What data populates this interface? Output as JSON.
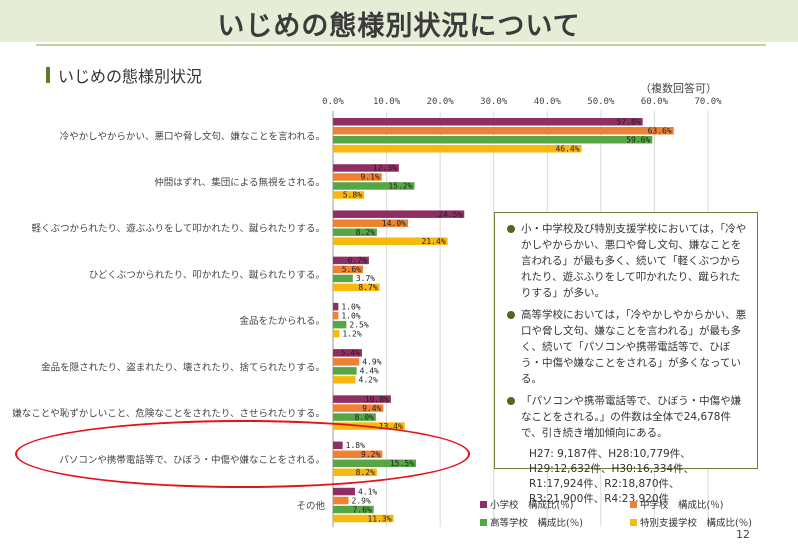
{
  "slide": {
    "title": "いじめの態様別状況について",
    "section_title": "いじめの態様別状況",
    "multi_answer_note": "（複数回答可）",
    "page_number": "12"
  },
  "colors": {
    "elementary": "#8e2e62",
    "junior_high": "#ef8232",
    "high_school": "#57a646",
    "special_needs": "#f8b80e",
    "header_bg": "#e6edd6",
    "highlight": "#e3131a"
  },
  "chart_data": {
    "type": "bar",
    "orientation": "horizontal",
    "title": "",
    "xlim": [
      0,
      70
    ],
    "x_ticks": [
      "0.0%",
      "10.0%",
      "20.0%",
      "30.0%",
      "40.0%",
      "50.0%",
      "60.0%",
      "70.0%"
    ],
    "grid": true,
    "legend_position": "bottom-right",
    "categories": [
      "冷やかしやからかい、悪口や脅し文句、嫌なことを言われる。",
      "仲間はずれ、集団による無視をされる。",
      "軽くぶつかられたり、遊ぶふりをして叩かれたり、蹴られたりする。",
      "ひどくぶつかられたり、叩かれたり、蹴られたりする。",
      "金品をたかられる。",
      "金品を隠されたり、盗まれたり、壊されたり、捨てられたりする。",
      "嫌なことや恥ずかしいこと、危険なことをされたり、させられたりする。",
      "パソコンや携帯電話等で、ひぼう・中傷や嫌なことをされる。",
      "その他"
    ],
    "series": [
      {
        "name": "小学校　構成比(％)",
        "values": [
          57.8,
          12.3,
          24.5,
          6.7,
          1.0,
          5.4,
          10.8,
          1.8,
          4.1
        ],
        "labels": [
          "57.8%",
          "12.3%",
          "24.5%",
          "6.7%",
          "1.0%",
          "5.4%",
          "10.8%",
          "1.8%",
          "4.1%"
        ]
      },
      {
        "name": "中学校　構成比(％)",
        "values": [
          63.6,
          9.1,
          14.0,
          5.6,
          1.0,
          4.9,
          9.4,
          9.2,
          2.9
        ],
        "labels": [
          "63.6%",
          "9.1%",
          "14.0%",
          "5.6%",
          "1.0%",
          "4.9%",
          "9.4%",
          "9.2%",
          "2.9%"
        ]
      },
      {
        "name": "高等学校　構成比(％)",
        "values": [
          59.6,
          15.2,
          8.2,
          3.7,
          2.5,
          4.4,
          8.0,
          15.5,
          7.6
        ],
        "labels": [
          "59.6%",
          "15.2%",
          "8.2%",
          "3.7%",
          "2.5%",
          "4.4%",
          "8.0%",
          "15.5%",
          "7.6%"
        ]
      },
      {
        "name": "特別支援学校　構成比(％)",
        "values": [
          46.4,
          5.8,
          21.4,
          8.7,
          1.2,
          4.2,
          13.4,
          8.2,
          11.3
        ],
        "labels": [
          "46.4%",
          "5.8%",
          "21.4%",
          "8.7%",
          "1.2%",
          "4.2%",
          "13.4%",
          "8.2%",
          "11.3%"
        ]
      }
    ],
    "highlighted_category": "パソコンや携帯電話等で、ひぼう・中傷や嫌なことをされる。"
  },
  "notes": {
    "bullet1": "小・中学校及び特別支援学校においては，「冷やかしやからかい、悪口や脅し文句、嫌なことを言われる」が最も多く、続いて「軽くぶつかられたり、遊ぶふりをして叩かれたり、蹴られたりする」が多い。",
    "bullet2": "高等学校においては，「冷やかしやからかい、悪口や脅し文句、嫌なことを言われる」が最も多く、続いて「パソコンや携帯電話等で、ひぼう・中傷や嫌なことをされる」が多くなっている。",
    "bullet3": "「パソコンや携帯電話等で、ひぼう・中傷や嫌なことをされる。」の件数は全体で24,678件で、引き続き増加傾向にある。",
    "stats": [
      "H27: 9,187件、H28:10,779件、",
      "H29:12,632件、H30:16,334件、",
      "R1:17,924件、R2:18,870件、",
      "R3:21,900件、R4:23,920件"
    ]
  }
}
